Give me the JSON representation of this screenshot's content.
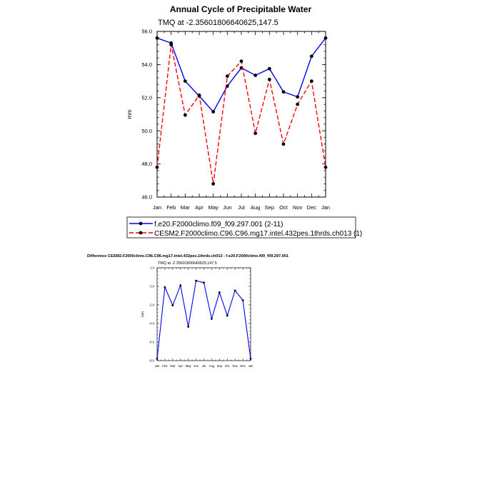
{
  "chart_data": [
    {
      "type": "line",
      "title": "Annual Cycle of Precipitable Water",
      "subtitle": "TMQ at -2.35601806640625,147.5",
      "xlabel": "",
      "ylabel": "mm",
      "categories": [
        "Jan",
        "Feb",
        "Mar",
        "Apr",
        "May",
        "Jun",
        "Jul",
        "Aug",
        "Sep",
        "Oct",
        "Nov",
        "Dec",
        "Jan"
      ],
      "yticks": [
        "46.0",
        "48.0",
        "50.0",
        "52.0",
        "54.0",
        "56.0"
      ],
      "ylim": [
        46,
        56
      ],
      "grid": false,
      "legend_position": "bottom",
      "series": [
        {
          "name": "f.e20.F2000climo.f09_f09.297.001 (2-11)",
          "color": "#0000ff",
          "dash": "solid",
          "values": [
            55.6,
            55.3,
            53.0,
            52.1,
            51.15,
            52.7,
            53.8,
            53.35,
            53.75,
            52.35,
            52.05,
            54.5,
            55.6
          ]
        },
        {
          "name": "CESM2.F2000climo.C96.C96.mg17.intel.432pes.1thrds.ch013 (1)",
          "color": "#ff0000",
          "dash": "dashed",
          "values": [
            47.8,
            55.2,
            50.95,
            52.15,
            46.8,
            53.3,
            54.2,
            49.85,
            53.1,
            49.2,
            51.6,
            53.0,
            47.8
          ]
        }
      ]
    },
    {
      "type": "line",
      "title": "Difference CESM2.F2000climo.C96.C96.mg17.intel.432pes.1thrds.ch013 - f.e20.F2000climo.f09_f09.297.001",
      "subtitle": "TMQ at -2.35601806640625,147.5",
      "xlabel": "",
      "ylabel": "mm",
      "categories": [
        "Jan",
        "Feb",
        "Mar",
        "Apr",
        "May",
        "Jun",
        "Jul",
        "Aug",
        "Sep",
        "Oct",
        "Nov",
        "Dec",
        "Jan"
      ],
      "yticks": [
        "-8.0",
        "-6.0",
        "-4.0",
        "-2.0",
        "0.0",
        "2.0"
      ],
      "ylim": [
        -8,
        2
      ],
      "grid": false,
      "series": [
        {
          "color": "#0000ff",
          "dash": "solid",
          "values": [
            -7.8,
            -0.1,
            -2.05,
            0.1,
            -4.35,
            0.6,
            0.4,
            -3.5,
            -0.65,
            -3.15,
            -0.45,
            -1.5,
            -7.8
          ]
        }
      ]
    }
  ]
}
